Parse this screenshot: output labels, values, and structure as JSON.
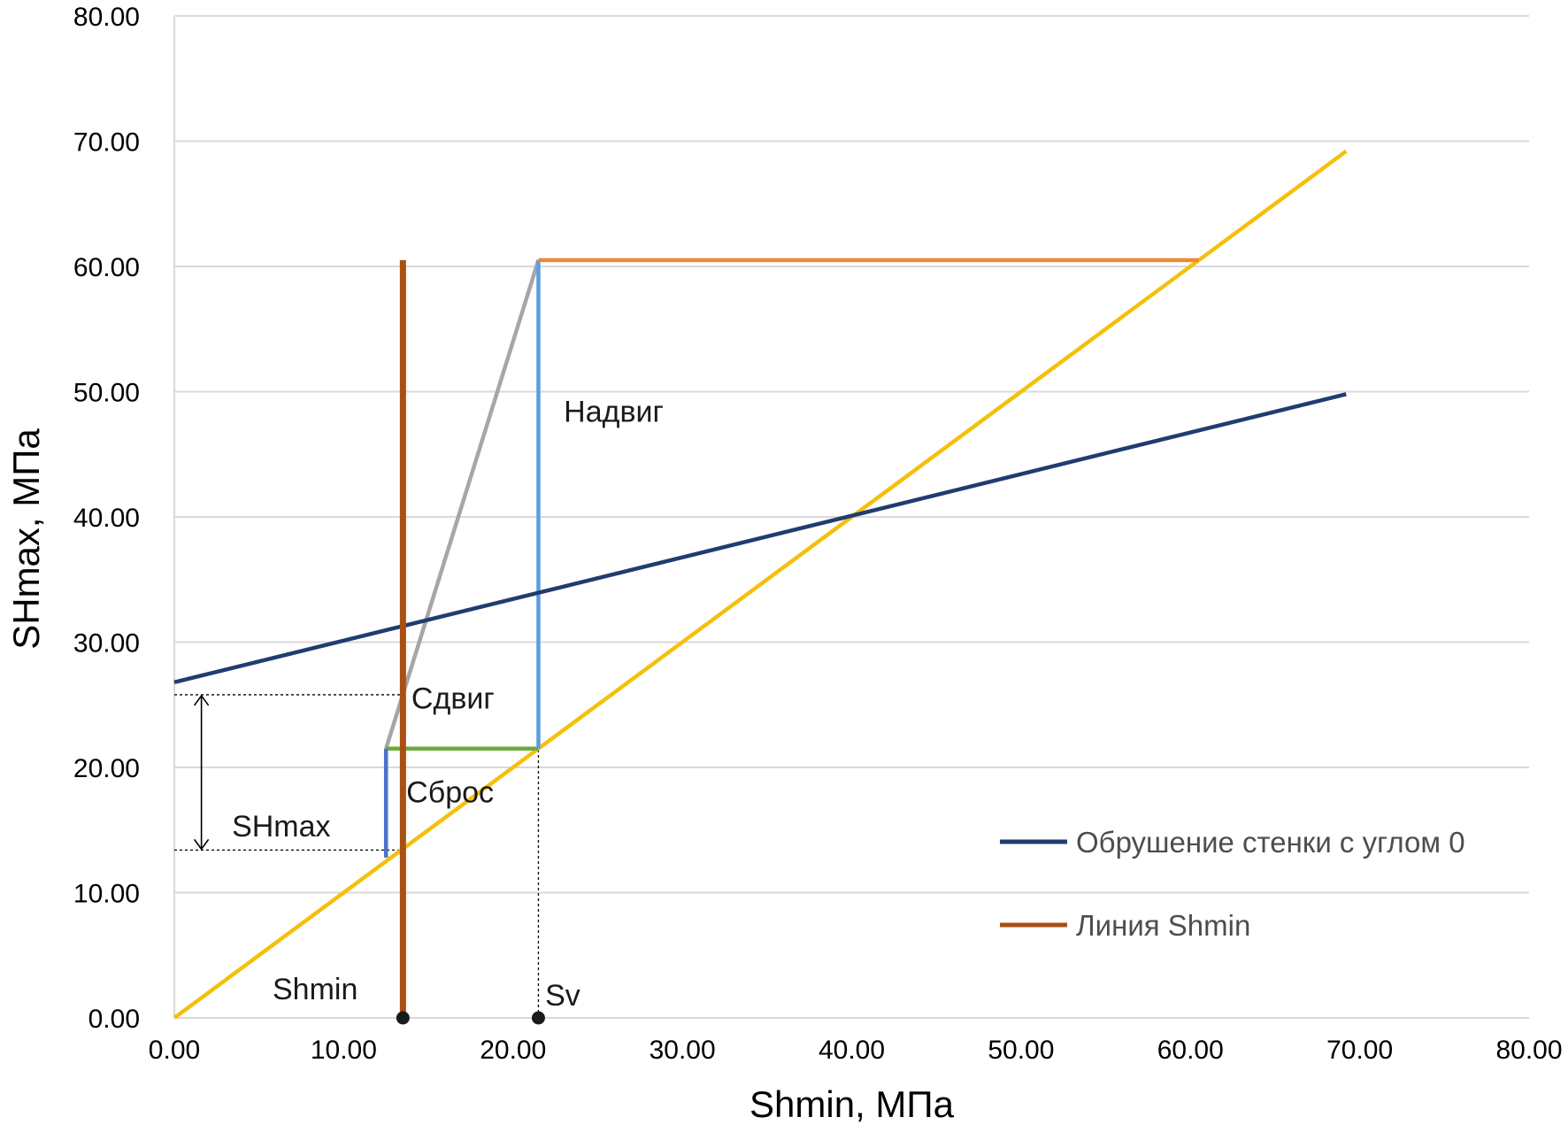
{
  "chart_data": {
    "type": "line",
    "xlabel": "Shmin, МПа",
    "ylabel": "SHmax, МПа",
    "xlim": [
      0,
      80
    ],
    "ylim": [
      0,
      80
    ],
    "x_ticks": [
      "0.00",
      "10.00",
      "20.00",
      "30.00",
      "40.00",
      "50.00",
      "60.00",
      "70.00",
      "80.00"
    ],
    "y_ticks": [
      "0.00",
      "10.00",
      "20.00",
      "30.00",
      "40.00",
      "50.00",
      "60.00",
      "70.00",
      "80.00"
    ],
    "grid": {
      "horizontal": true,
      "vertical": false
    },
    "legend_position": "right",
    "series": [
      {
        "name": "Обрушение стенки с углом 0",
        "color": "#1f3d6e",
        "in_legend": true,
        "points": [
          [
            0,
            26.8
          ],
          [
            69.2,
            49.8
          ]
        ]
      },
      {
        "name": "Линия Shmin",
        "color": "#a84f12",
        "in_legend": true,
        "points": [
          [
            13.5,
            0
          ],
          [
            13.5,
            60.5
          ]
        ]
      },
      {
        "name": "",
        "color": "#f5c00c",
        "in_legend": false,
        "points": [
          [
            0,
            0
          ],
          [
            69.2,
            69.2
          ]
        ]
      },
      {
        "name": "",
        "color": "#ee8a2e",
        "in_legend": false,
        "points": [
          [
            21.5,
            60.5
          ],
          [
            60.5,
            60.5
          ]
        ]
      },
      {
        "name": "",
        "color": "#5a9ee0",
        "in_legend": false,
        "points": [
          [
            21.5,
            21.5
          ],
          [
            21.5,
            60.5
          ]
        ]
      },
      {
        "name": "",
        "color": "#a6a6a6",
        "in_legend": false,
        "points": [
          [
            12.5,
            21.5
          ],
          [
            21.5,
            60.5
          ]
        ]
      },
      {
        "name": "",
        "color": "#6aac3a",
        "in_legend": false,
        "points": [
          [
            12.5,
            21.5
          ],
          [
            21.5,
            21.5
          ]
        ]
      },
      {
        "name": "",
        "color": "#4a72c4",
        "in_legend": false,
        "points": [
          [
            12.5,
            12.8
          ],
          [
            12.5,
            21.5
          ]
        ]
      }
    ],
    "guides": [
      {
        "name": "sv-guide",
        "points": [
          [
            21.5,
            0
          ],
          [
            21.5,
            21.5
          ]
        ]
      },
      {
        "name": "shmax-top-guide",
        "points": [
          [
            0,
            25.8
          ],
          [
            13.5,
            25.8
          ]
        ]
      },
      {
        "name": "shmax-bottom-guide",
        "points": [
          [
            0,
            13.4
          ],
          [
            13.5,
            13.4
          ]
        ]
      }
    ],
    "range_arrow": {
      "x": 1.6,
      "from": 13.4,
      "to": 25.8
    },
    "markers": [
      {
        "name": "shmin-point",
        "x": 13.5,
        "y": 0
      },
      {
        "name": "sv-point",
        "x": 21.5,
        "y": 0
      }
    ],
    "annotations": [
      {
        "name": "label-nadvig",
        "text": "Надвиг",
        "x": 23.0,
        "y": 47.6,
        "anchor": "start",
        "style": "annot"
      },
      {
        "name": "label-sdvig",
        "text": "Сдвиг",
        "x": 14.0,
        "y": 24.7,
        "anchor": "start",
        "style": "annot"
      },
      {
        "name": "label-sbros",
        "text": "Сброс",
        "x": 13.7,
        "y": 17.2,
        "anchor": "start",
        "style": "annot"
      },
      {
        "name": "label-shmax",
        "text": "SHmax",
        "x": 3.4,
        "y": 14.5,
        "anchor": "start",
        "style": "annot-big"
      },
      {
        "name": "label-shmin",
        "text": "Shmin",
        "x": 5.8,
        "y": 1.5,
        "anchor": "start",
        "style": "annot"
      },
      {
        "name": "label-sv",
        "text": "Sv",
        "x": 21.9,
        "y": 1.0,
        "anchor": "start",
        "style": "annot"
      }
    ]
  }
}
